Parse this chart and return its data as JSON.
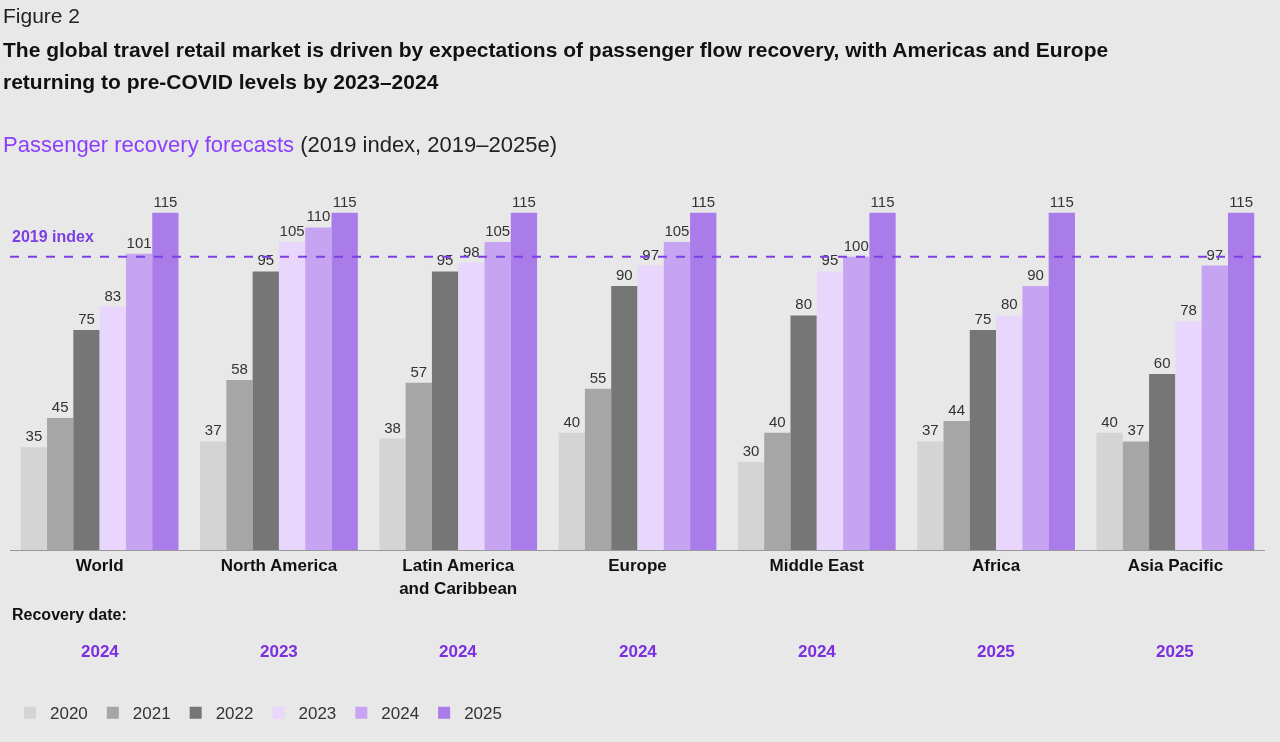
{
  "chart_data": {
    "type": "bar",
    "title": "The global travel retail market is driven by expectations of passenger flow recovery, with Americas and Europe returning to pre-COVID levels by 2023–2024",
    "subtitle": "Passenger recovery forecasts (2019 index, 2019–2025e)",
    "categories": [
      "World",
      "North America",
      "Latin America and Caribbean",
      "Europe",
      "Middle East",
      "Africa",
      "Asia Pacific"
    ],
    "series": [
      {
        "name": "2020",
        "color": "#d4d4d4",
        "values": [
          35,
          37,
          38,
          40,
          30,
          37,
          40
        ]
      },
      {
        "name": "2021",
        "color": "#a6a6a6",
        "values": [
          45,
          58,
          57,
          55,
          40,
          44,
          37
        ]
      },
      {
        "name": "2022",
        "color": "#767676",
        "values": [
          75,
          95,
          95,
          90,
          80,
          75,
          60
        ]
      },
      {
        "name": "2023",
        "color": "#e8d6fc",
        "values": [
          83,
          105,
          98,
          97,
          95,
          80,
          78
        ]
      },
      {
        "name": "2024",
        "color": "#c6a4f1",
        "values": [
          101,
          110,
          105,
          105,
          100,
          90,
          97
        ]
      },
      {
        "name": "2025",
        "color": "#aa7ce9",
        "values": [
          115,
          115,
          115,
          115,
          115,
          115,
          115
        ]
      }
    ],
    "ref_lines": [
      {
        "axis": "y",
        "value": 100,
        "label": "2019 index",
        "color": "#7b3fe4",
        "line_style": "dashed"
      }
    ],
    "annotations": [
      "Figure 2",
      "Recovery date:",
      "2024",
      "2023",
      "2024",
      "2024",
      "2024",
      "2025",
      "2025"
    ],
    "data_labels": true,
    "legend": "bottom left",
    "tick_labels": "x"
  }
}
